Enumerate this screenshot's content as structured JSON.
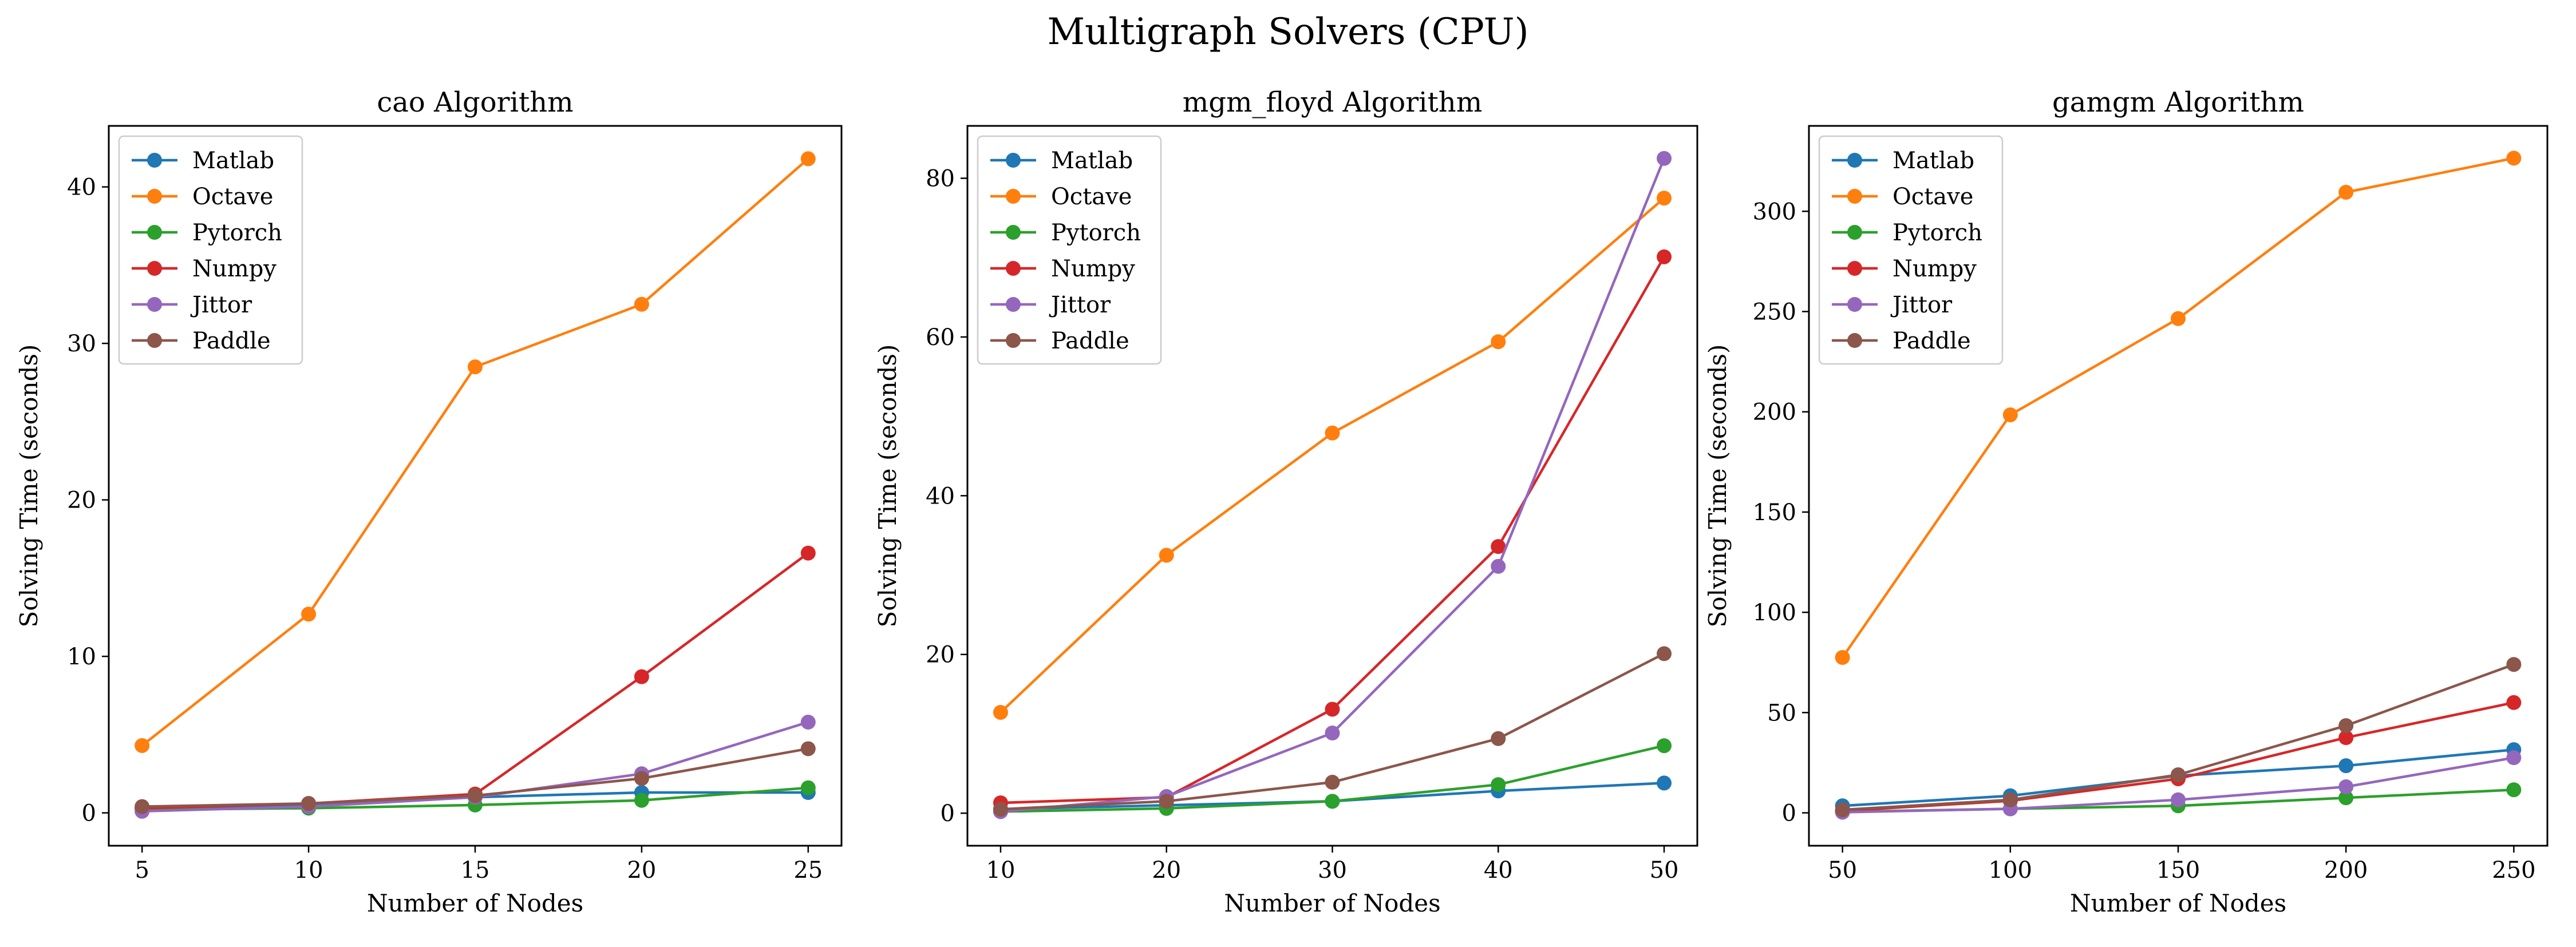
{
  "figure": {
    "title": "Multigraph Solvers (CPU)"
  },
  "chart_data": [
    {
      "type": "line",
      "title": "cao Algorithm",
      "xlabel": "Number of Nodes",
      "ylabel": "Solving Time (seconds)",
      "x": [
        5,
        10,
        15,
        20,
        25
      ],
      "xlim": [
        4,
        26
      ],
      "ylim": [
        -2.1,
        43.9
      ],
      "xticks": [
        5,
        10,
        15,
        20,
        25
      ],
      "yticks": [
        0,
        10,
        20,
        30,
        40
      ],
      "grid": false,
      "legend_position": "top-left",
      "series": [
        {
          "name": "Matlab",
          "color": "#1f77b4",
          "values": [
            0.3,
            0.5,
            1.0,
            1.3,
            1.3
          ]
        },
        {
          "name": "Octave",
          "color": "#ff7f0e",
          "values": [
            4.3,
            12.7,
            28.5,
            32.5,
            41.8
          ]
        },
        {
          "name": "Pytorch",
          "color": "#2ca02c",
          "values": [
            0.2,
            0.3,
            0.5,
            0.8,
            1.6
          ]
        },
        {
          "name": "Numpy",
          "color": "#d62728",
          "values": [
            0.3,
            0.6,
            1.2,
            8.7,
            16.6
          ]
        },
        {
          "name": "Jittor",
          "color": "#9467bd",
          "values": [
            0.1,
            0.4,
            1.0,
            2.5,
            5.8
          ]
        },
        {
          "name": "Paddle",
          "color": "#8c564b",
          "values": [
            0.4,
            0.6,
            1.1,
            2.2,
            4.1
          ]
        }
      ]
    },
    {
      "type": "line",
      "title": "mgm_floyd Algorithm",
      "xlabel": "Number of Nodes",
      "ylabel": "Solving Time (seconds)",
      "x": [
        10,
        20,
        30,
        40,
        50
      ],
      "xlim": [
        8,
        52
      ],
      "ylim": [
        -4.1,
        86.6
      ],
      "xticks": [
        10,
        20,
        30,
        40,
        50
      ],
      "yticks": [
        0,
        20,
        40,
        60,
        80
      ],
      "grid": false,
      "legend_position": "top-left",
      "series": [
        {
          "name": "Matlab",
          "color": "#1f77b4",
          "values": [
            0.5,
            1.0,
            1.5,
            2.8,
            3.8
          ]
        },
        {
          "name": "Octave",
          "color": "#ff7f0e",
          "values": [
            12.7,
            32.5,
            47.9,
            59.4,
            77.5
          ]
        },
        {
          "name": "Pytorch",
          "color": "#2ca02c",
          "values": [
            0.2,
            0.6,
            1.5,
            3.6,
            8.5
          ]
        },
        {
          "name": "Numpy",
          "color": "#d62728",
          "values": [
            1.3,
            2.0,
            13.1,
            33.6,
            70.1
          ]
        },
        {
          "name": "Jittor",
          "color": "#9467bd",
          "values": [
            0.2,
            2.1,
            10.1,
            31.1,
            82.5
          ]
        },
        {
          "name": "Paddle",
          "color": "#8c564b",
          "values": [
            0.5,
            1.5,
            3.9,
            9.4,
            20.1
          ]
        }
      ]
    },
    {
      "type": "line",
      "title": "gamgm Algorithm",
      "xlabel": "Number of Nodes",
      "ylabel": "Solving Time (seconds)",
      "x": [
        50,
        100,
        150,
        200,
        250
      ],
      "xlim": [
        40,
        260
      ],
      "ylim": [
        -16.4,
        342.6
      ],
      "xticks": [
        50,
        100,
        150,
        200,
        250
      ],
      "yticks": [
        0,
        50,
        100,
        150,
        200,
        250,
        300
      ],
      "grid": false,
      "legend_position": "top-left",
      "series": [
        {
          "name": "Matlab",
          "color": "#1f77b4",
          "values": [
            3.5,
            8.5,
            18.5,
            23.5,
            31.5
          ]
        },
        {
          "name": "Octave",
          "color": "#ff7f0e",
          "values": [
            77.5,
            198.5,
            246.5,
            309.5,
            326.5
          ]
        },
        {
          "name": "Pytorch",
          "color": "#2ca02c",
          "values": [
            0.5,
            2.0,
            3.5,
            7.5,
            11.5
          ]
        },
        {
          "name": "Numpy",
          "color": "#d62728",
          "values": [
            1.0,
            6.0,
            17.0,
            37.5,
            55.0
          ]
        },
        {
          "name": "Jittor",
          "color": "#9467bd",
          "values": [
            0.3,
            2.0,
            6.5,
            13.0,
            27.5
          ]
        },
        {
          "name": "Paddle",
          "color": "#8c564b",
          "values": [
            1.5,
            6.5,
            19.0,
            43.5,
            74.0
          ]
        }
      ]
    }
  ]
}
